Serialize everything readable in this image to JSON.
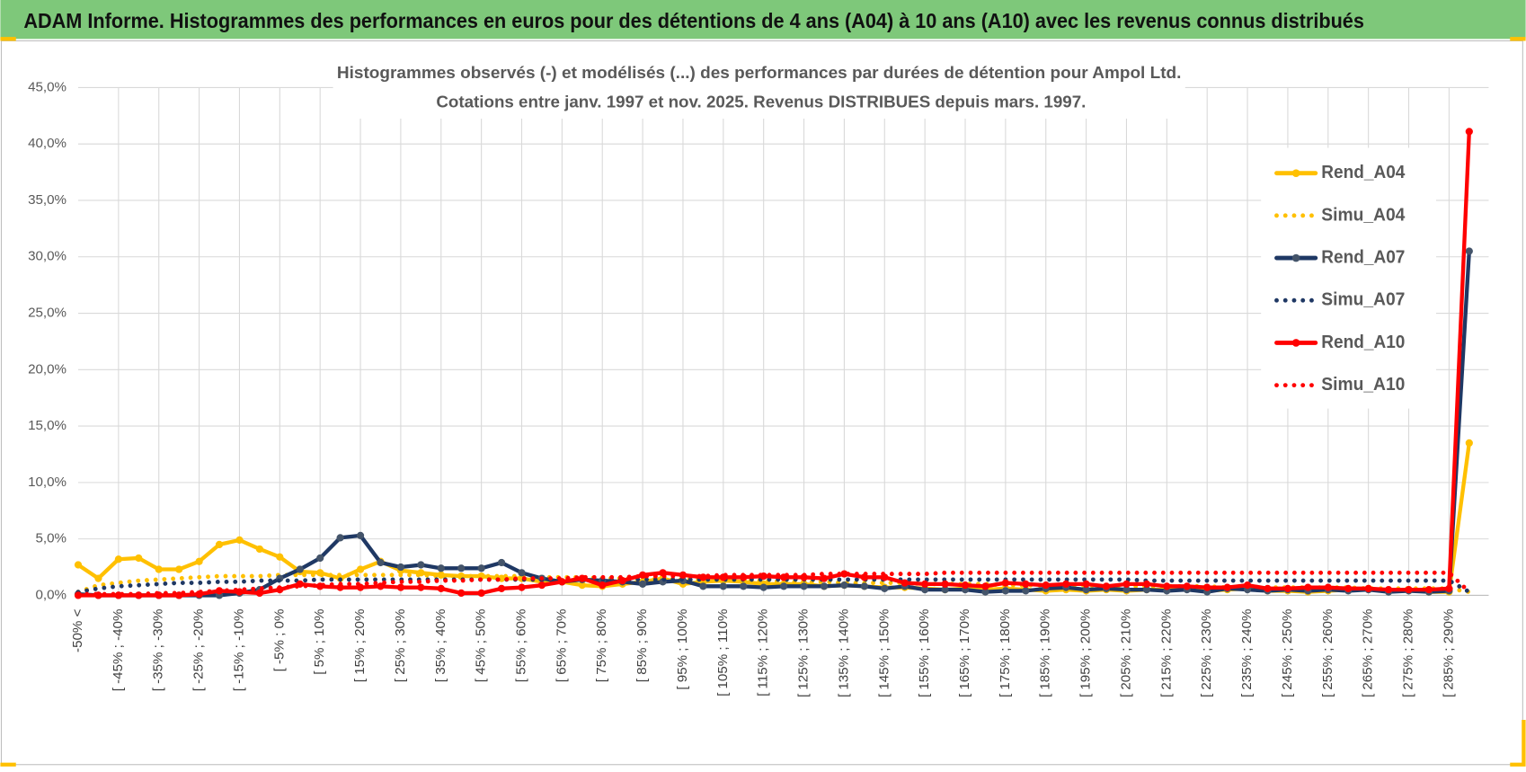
{
  "chart_data": {
    "type": "line",
    "header": "ADAM Informe. Histogrammes des performances en euros pour des détentions de 4 ans (A04) à 10 ans (A10) avec les revenus connus distribués",
    "title": [
      "Histogrammes observés (-) et modélisés (...) des performances par durées de détention pour Ampol Ltd.",
      "Cotations entre janv. 1997 et nov. 2025. Revenus DISTRIBUES depuis mars. 1997."
    ],
    "categories": [
      "-50% <",
      null,
      "[ -45% ; -40%",
      null,
      "[ -35% ; -30%",
      null,
      "[ -25% ; -20%",
      null,
      "[ -15% ; -10%",
      null,
      "[ -5% ; 0%",
      null,
      "[ 5% ; 10%",
      null,
      "[ 15% ; 20%",
      null,
      "[ 25% ; 30%",
      null,
      "[ 35% ; 40%",
      null,
      "[ 45% ; 50%",
      null,
      "[ 55% ; 60%",
      null,
      "[ 65% ; 70%",
      null,
      "[ 75% ; 80%",
      null,
      "[ 85% ; 90%",
      null,
      "[ 95% ; 100%",
      null,
      "[ 105% ; 110%",
      null,
      "[ 115% ; 120%",
      null,
      "[ 125% ; 130%",
      null,
      "[ 135% ; 140%",
      null,
      "[ 145% ; 150%",
      null,
      "[ 155% ; 160%",
      null,
      "[ 165% ; 170%",
      null,
      "[ 175% ; 180%",
      null,
      "[ 185% ; 190%",
      null,
      "[ 195% ; 200%",
      null,
      "[ 205% ; 210%",
      null,
      "[ 215% ; 220%",
      null,
      "[ 225% ; 230%",
      null,
      "[ 235% ; 240%",
      null,
      "[ 245% ; 250%",
      null,
      "[ 255% ; 260%",
      null,
      "[ 265% ; 270%",
      null,
      "[ 275% ; 280%",
      null,
      "[ 285% ; 290%",
      null
    ],
    "ylim": [
      0,
      45
    ],
    "yticks": [
      {
        "value": 0,
        "label": "0,0%"
      },
      {
        "value": 5,
        "label": "5,0%"
      },
      {
        "value": 10,
        "label": "10,0%"
      },
      {
        "value": 15,
        "label": "15,0%"
      },
      {
        "value": 20,
        "label": "20,0%"
      },
      {
        "value": 25,
        "label": "25,0%"
      },
      {
        "value": 30,
        "label": "30,0%"
      },
      {
        "value": 35,
        "label": "35,0%"
      },
      {
        "value": 40,
        "label": "40,0%"
      },
      {
        "value": 45,
        "label": "45,0%"
      }
    ],
    "grid": true,
    "legend": "upper right",
    "series": [
      {
        "name": "Rend_A04",
        "color": "#ffc000",
        "style": "solid",
        "values": [
          2.7,
          1.5,
          3.2,
          3.3,
          2.3,
          2.3,
          3.0,
          4.5,
          4.9,
          4.1,
          3.4,
          2.1,
          2.0,
          1.5,
          2.3,
          3.0,
          2.2,
          2.0,
          1.8,
          1.7,
          1.7,
          1.5,
          1.5,
          1.2,
          1.2,
          0.9,
          0.8,
          1.0,
          1.2,
          1.5,
          1.0,
          1.2,
          1.3,
          1.2,
          1.0,
          1.0,
          1.0,
          0.8,
          0.9,
          0.8,
          0.7,
          0.7,
          0.6,
          0.5,
          0.6,
          0.5,
          0.6,
          0.5,
          0.4,
          0.5,
          0.4,
          0.5,
          0.4,
          0.5,
          0.5,
          0.6,
          0.4,
          0.5,
          0.6,
          0.4,
          0.4,
          0.3,
          0.4,
          0.5,
          0.6,
          0.4,
          0.5,
          0.3,
          0.3,
          13.5
        ]
      },
      {
        "name": "Simu_A04",
        "color": "#ffc000",
        "style": "dotted",
        "values": [
          0.3,
          0.9,
          1.1,
          1.3,
          1.4,
          1.5,
          1.6,
          1.7,
          1.7,
          1.7,
          1.8,
          1.8,
          1.8,
          1.8,
          1.8,
          1.8,
          1.8,
          1.8,
          1.7,
          1.7,
          1.7,
          1.7,
          1.7,
          1.6,
          1.6,
          1.6,
          1.5,
          1.5,
          1.5,
          1.4,
          1.4,
          1.4,
          1.3,
          1.3,
          1.3,
          1.2,
          1.2,
          1.2,
          1.1,
          1.1,
          1.1,
          1.1,
          1.0,
          1.0,
          1.0,
          1.0,
          0.9,
          0.9,
          0.9,
          0.9,
          0.9,
          0.8,
          0.8,
          0.8,
          0.8,
          0.8,
          0.8,
          0.7,
          0.7,
          0.7,
          0.7,
          0.7,
          0.7,
          0.7,
          0.6,
          0.6,
          0.6,
          0.6,
          0.6,
          0.3
        ]
      },
      {
        "name": "Rend_A07",
        "color": "#1f3864",
        "style": "solid",
        "values": [
          0.1,
          0.0,
          0.0,
          0.0,
          0.0,
          0.0,
          0.0,
          0.0,
          0.2,
          0.5,
          1.5,
          2.3,
          3.3,
          5.1,
          5.3,
          2.9,
          2.5,
          2.7,
          2.4,
          2.4,
          2.4,
          2.9,
          2.0,
          1.5,
          1.2,
          1.4,
          1.3,
          1.2,
          1.0,
          1.2,
          1.3,
          0.8,
          0.8,
          0.8,
          0.7,
          0.8,
          0.8,
          0.8,
          0.9,
          0.8,
          0.6,
          0.8,
          0.5,
          0.5,
          0.5,
          0.3,
          0.4,
          0.4,
          0.6,
          0.7,
          0.5,
          0.6,
          0.5,
          0.5,
          0.4,
          0.5,
          0.3,
          0.6,
          0.5,
          0.4,
          0.5,
          0.4,
          0.5,
          0.4,
          0.5,
          0.3,
          0.4,
          0.3,
          0.4,
          30.5
        ]
      },
      {
        "name": "Simu_A07",
        "color": "#1f3864",
        "style": "dotted",
        "values": [
          0.3,
          0.6,
          0.8,
          0.9,
          1.0,
          1.1,
          1.1,
          1.2,
          1.2,
          1.3,
          1.3,
          1.3,
          1.4,
          1.4,
          1.4,
          1.4,
          1.4,
          1.4,
          1.4,
          1.4,
          1.4,
          1.4,
          1.4,
          1.4,
          1.4,
          1.4,
          1.4,
          1.4,
          1.4,
          1.4,
          1.4,
          1.4,
          1.4,
          1.4,
          1.4,
          1.4,
          1.4,
          1.4,
          1.4,
          1.4,
          1.4,
          1.4,
          1.4,
          1.4,
          1.4,
          1.4,
          1.4,
          1.4,
          1.4,
          1.4,
          1.4,
          1.4,
          1.4,
          1.3,
          1.3,
          1.3,
          1.3,
          1.3,
          1.3,
          1.3,
          1.3,
          1.3,
          1.3,
          1.3,
          1.3,
          1.3,
          1.3,
          1.3,
          1.3,
          0.3
        ]
      },
      {
        "name": "Rend_A10",
        "color": "#ff0000",
        "style": "solid",
        "values": [
          0.0,
          0.0,
          0.0,
          0.0,
          0.0,
          0.0,
          0.1,
          0.4,
          0.3,
          0.2,
          0.5,
          1.0,
          0.8,
          0.7,
          0.7,
          0.8,
          0.7,
          0.7,
          0.6,
          0.2,
          0.2,
          0.6,
          0.7,
          0.9,
          1.2,
          1.5,
          0.9,
          1.3,
          1.8,
          2.0,
          1.8,
          1.6,
          1.6,
          1.6,
          1.7,
          1.6,
          1.6,
          1.5,
          1.9,
          1.6,
          1.6,
          1.1,
          1.0,
          1.0,
          0.9,
          0.8,
          1.1,
          1.0,
          0.9,
          1.0,
          1.0,
          0.8,
          1.0,
          1.0,
          0.8,
          0.8,
          0.7,
          0.7,
          0.9,
          0.6,
          0.6,
          0.7,
          0.7,
          0.6,
          0.6,
          0.5,
          0.5,
          0.5,
          0.6,
          41.1
        ]
      },
      {
        "name": "Simu_A10",
        "color": "#ff0000",
        "style": "dotted",
        "values": [
          0.1,
          0.1,
          0.1,
          0.1,
          0.2,
          0.2,
          0.3,
          0.4,
          0.5,
          0.6,
          0.7,
          0.8,
          0.9,
          1.0,
          1.0,
          1.1,
          1.2,
          1.2,
          1.3,
          1.3,
          1.4,
          1.4,
          1.5,
          1.5,
          1.5,
          1.6,
          1.6,
          1.6,
          1.7,
          1.7,
          1.7,
          1.7,
          1.8,
          1.8,
          1.8,
          1.8,
          1.8,
          1.9,
          1.9,
          1.9,
          1.9,
          1.9,
          1.9,
          2.0,
          2.0,
          2.0,
          2.0,
          2.0,
          2.0,
          2.0,
          2.0,
          2.0,
          2.0,
          2.0,
          2.0,
          2.0,
          2.0,
          2.0,
          2.0,
          2.0,
          2.0,
          2.0,
          2.0,
          2.0,
          2.0,
          2.0,
          2.0,
          2.0,
          2.0,
          0.3
        ]
      }
    ]
  }
}
